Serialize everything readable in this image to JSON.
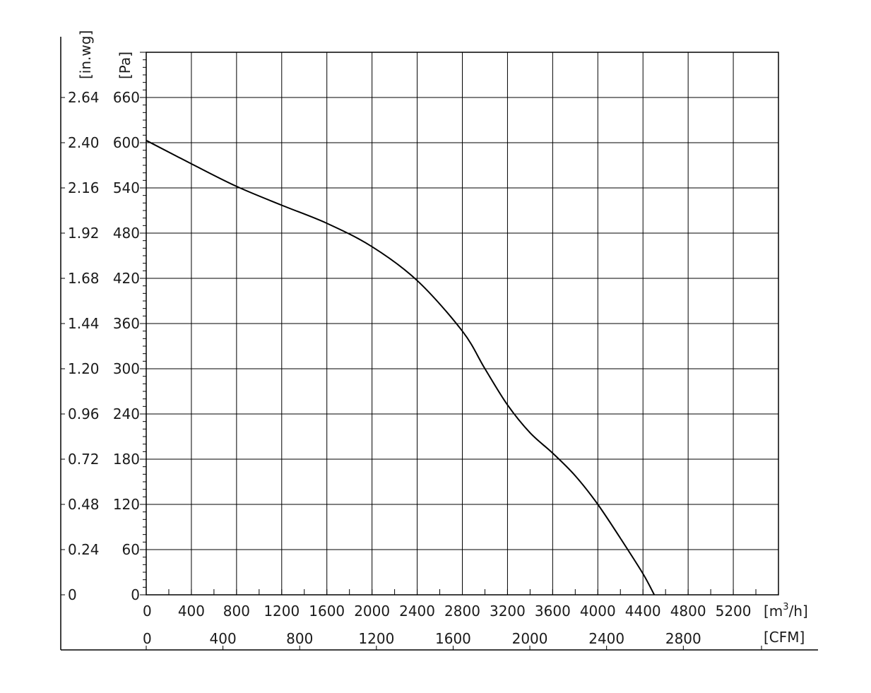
{
  "chart_data": {
    "type": "line",
    "title": "",
    "xlabel": "",
    "ylabel": "",
    "x_axis_primary": {
      "unit_base": "[m",
      "unit_sup": "3",
      "unit_tail": "/h]",
      "range": [
        0,
        5600
      ],
      "ticks": [
        0,
        400,
        800,
        1200,
        1600,
        2000,
        2400,
        2800,
        3200,
        3600,
        4000,
        4400,
        4800,
        5200
      ]
    },
    "x_axis_secondary": {
      "unit": "[CFM]",
      "ticks": [
        0,
        400,
        800,
        1200,
        1600,
        2000,
        2400,
        2800
      ]
    },
    "y_axis_primary": {
      "unit": "[Pa]",
      "range": [
        0,
        720
      ],
      "ticks": [
        0,
        60,
        120,
        180,
        240,
        300,
        360,
        420,
        480,
        540,
        600,
        660
      ]
    },
    "y_axis_secondary": {
      "unit": "[in.wg]",
      "ticks": [
        "0",
        "0.24",
        "0.48",
        "0.72",
        "0.96",
        "1.20",
        "1.44",
        "1.68",
        "1.92",
        "2.16",
        "2.40",
        "2.64"
      ]
    },
    "grid": true,
    "series": [
      {
        "x": [
          0,
          400,
          800,
          1200,
          1600,
          2000,
          2400,
          2800,
          3000,
          3200,
          3400,
          3600,
          3800,
          4000,
          4200,
          4400,
          4500
        ],
        "y": [
          603,
          572,
          542,
          517,
          493,
          462,
          417,
          350,
          300,
          252,
          215,
          188,
          158,
          120,
          75,
          28,
          0
        ]
      }
    ]
  }
}
